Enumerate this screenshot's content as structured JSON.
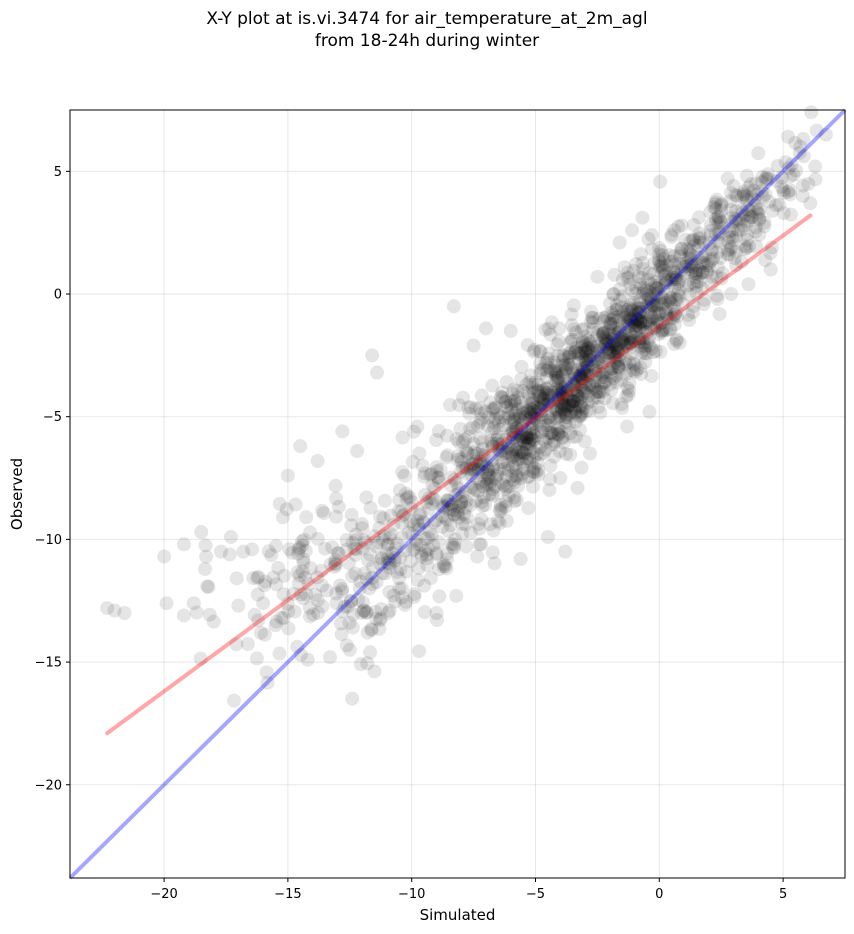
{
  "chart_data": {
    "type": "scatter",
    "title": "X-Y plot at is.vi.3474 for air_temperature_at_2m_agl\nfrom 18-24h during winter",
    "xlabel": "Simulated",
    "ylabel": "Observed",
    "xlim": [
      -23.8,
      7.5
    ],
    "ylim": [
      -23.8,
      7.5
    ],
    "xticks": [
      -20,
      -15,
      -10,
      -5,
      0,
      5
    ],
    "yticks": [
      -20,
      -15,
      -10,
      -5,
      0,
      5
    ],
    "xtick_labels": [
      "−20",
      "−15",
      "−10",
      "−5",
      "0",
      "5"
    ],
    "ytick_labels": [
      "−20",
      "−15",
      "−10",
      "−5",
      "0",
      "5"
    ],
    "grid": true,
    "point_color": "#000000",
    "point_alpha": 0.1,
    "reference_line": {
      "color": "#0000ff",
      "alpha": 0.35,
      "x": [
        -23.8,
        7.5
      ],
      "y": [
        -23.8,
        7.5
      ]
    },
    "fit_line": {
      "color": "#ff0000",
      "alpha": 0.35,
      "x": [
        -22.3,
        6.1
      ],
      "y": [
        -17.9,
        3.2
      ]
    },
    "cluster_points": [
      {
        "x": -22.3,
        "y": -12.8
      },
      {
        "x": -22.0,
        "y": -12.9
      },
      {
        "x": -21.6,
        "y": -13.0
      },
      {
        "x": -20.0,
        "y": -10.7
      },
      {
        "x": -19.9,
        "y": -12.6
      },
      {
        "x": -19.2,
        "y": -10.2
      },
      {
        "x": -19.2,
        "y": -13.1
      },
      {
        "x": -18.8,
        "y": -12.6
      },
      {
        "x": -18.5,
        "y": -9.7
      },
      {
        "x": -18.3,
        "y": -10.7
      },
      {
        "x": -17.7,
        "y": -10.5
      },
      {
        "x": -17.3,
        "y": -9.9
      },
      {
        "x": -17.0,
        "y": -12.7
      },
      {
        "x": -16.8,
        "y": -10.5
      },
      {
        "x": -16.2,
        "y": -13.3
      },
      {
        "x": -16.0,
        "y": -12.6
      },
      {
        "x": -15.5,
        "y": -13.5
      },
      {
        "x": -15.2,
        "y": -9.1
      },
      {
        "x": -15.0,
        "y": -7.4
      },
      {
        "x": -14.5,
        "y": -6.2
      },
      {
        "x": -14.2,
        "y": -14.9
      },
      {
        "x": -13.8,
        "y": -6.8
      },
      {
        "x": -13.3,
        "y": -14.8
      },
      {
        "x": -12.8,
        "y": -5.6
      },
      {
        "x": -12.5,
        "y": -14.5
      },
      {
        "x": -12.2,
        "y": -6.4
      },
      {
        "x": -11.6,
        "y": -2.5
      },
      {
        "x": -11.4,
        "y": -3.2
      },
      {
        "x": -8.3,
        "y": -0.5
      },
      {
        "x": -4.5,
        "y": -9.9
      },
      {
        "x": -3.8,
        "y": -10.5
      },
      {
        "x": -5.6,
        "y": -10.8
      },
      {
        "x": -8.2,
        "y": -12.3
      },
      {
        "x": -9.0,
        "y": -13.0
      },
      {
        "x": -10.5,
        "y": -12.0
      },
      {
        "x": -2.5,
        "y": 0.7
      },
      {
        "x": -1.6,
        "y": 2.1
      },
      {
        "x": -1.1,
        "y": 2.6
      },
      {
        "x": -0.3,
        "y": 2.4
      },
      {
        "x": 0.6,
        "y": 2.6
      },
      {
        "x": 2.5,
        "y": 3.4
      },
      {
        "x": 3.9,
        "y": 4.5
      },
      {
        "x": 4.4,
        "y": 4.7
      },
      {
        "x": 5.3,
        "y": 4.8
      },
      {
        "x": 5.8,
        "y": 4.0
      },
      {
        "x": 6.1,
        "y": 3.7
      },
      {
        "x": 4.5,
        "y": 1.0
      },
      {
        "x": 3.6,
        "y": 0.4
      },
      {
        "x": 2.9,
        "y": 0.0
      },
      {
        "x": -0.4,
        "y": -4.8
      },
      {
        "x": -1.3,
        "y": -5.4
      },
      {
        "x": -2.8,
        "y": -6.5
      },
      {
        "x": -4.0,
        "y": -7.5
      },
      {
        "x": -3.3,
        "y": -7.9
      },
      {
        "x": -6.0,
        "y": -1.5
      },
      {
        "x": -7.0,
        "y": -1.4
      },
      {
        "x": -7.5,
        "y": -2.1
      }
    ]
  }
}
